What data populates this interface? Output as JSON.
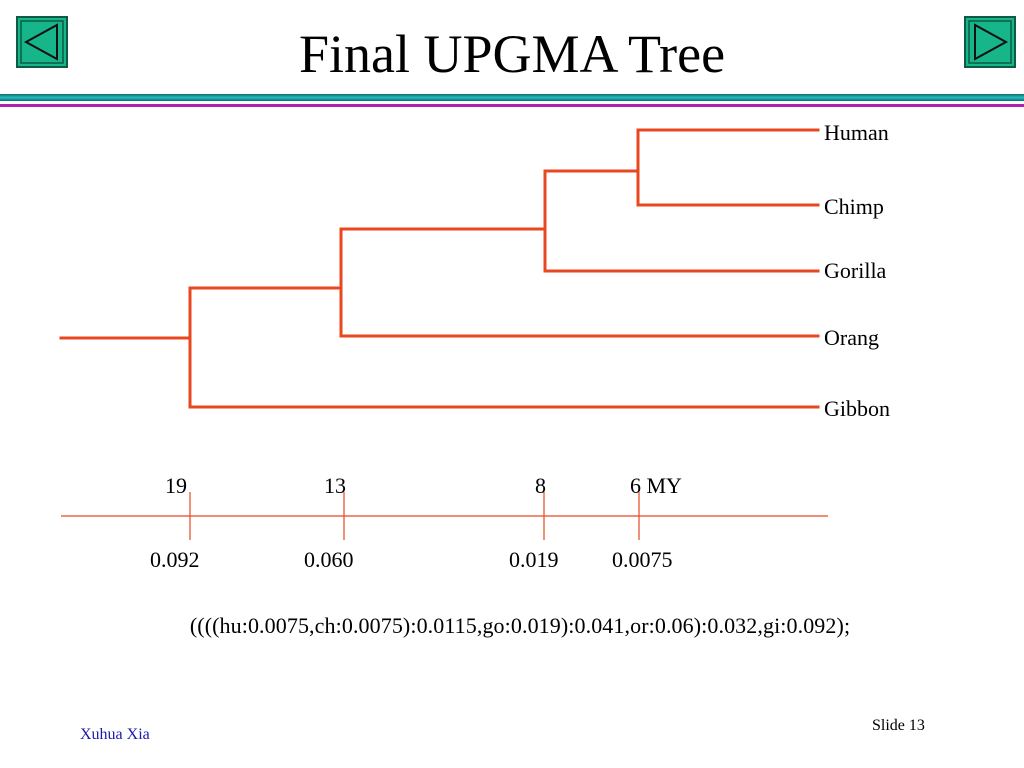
{
  "header": {
    "title": "Final UPGMA Tree"
  },
  "colors": {
    "branch": "#e8471f",
    "nav_fill": "#17b58a",
    "rule_teal": "#1aa3a3",
    "rule_magenta": "#b01fb0",
    "footer_text": "#1a1aa8"
  },
  "tree": {
    "newick": "((((hu:0.0075,ch:0.0075):0.0115,go:0.019):0.041,or:0.06):0.032,gi:0.092);",
    "taxa": [
      "Human",
      "Chimp",
      "Gorilla",
      "Orang",
      "Gibbon"
    ]
  },
  "time_axis": {
    "time_labels": [
      "19",
      "13",
      "8",
      "6 MY"
    ],
    "distance_labels": [
      "0.092",
      "0.060",
      "0.019",
      "0.0075"
    ]
  },
  "footer": {
    "author": "Xuhua Xia",
    "slide_number": "Slide 13"
  }
}
